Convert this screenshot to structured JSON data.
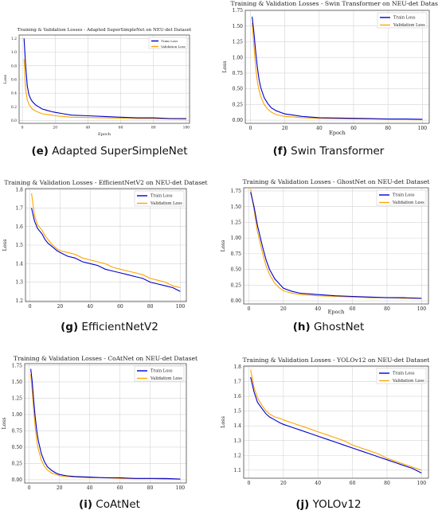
{
  "chart_data": [
    {
      "type": "line",
      "title": "Training & Validation Losses - Adapted SuperSimpleNet on NEU-det Dataset",
      "xlabel": "Epoch",
      "ylabel": "Loss",
      "xlim": [
        -2,
        102
      ],
      "ylim": [
        -0.04,
        1.25
      ],
      "xticks": [
        "0",
        "20",
        "40",
        "60",
        "80",
        "100"
      ],
      "yticks": [
        "0.0",
        "0.2",
        "0.4",
        "0.6",
        "0.8",
        "1.0",
        "1.2"
      ],
      "grid": true,
      "legend": "top-right",
      "series": [
        {
          "name": "Train Loss",
          "color": "#0000cc",
          "x": [
            1,
            2,
            3,
            4,
            5,
            6,
            8,
            10,
            12,
            15,
            18,
            20,
            25,
            30,
            40,
            50,
            60,
            70,
            80,
            90,
            100
          ],
          "y": [
            1.2,
            0.8,
            0.5,
            0.38,
            0.32,
            0.28,
            0.23,
            0.2,
            0.17,
            0.15,
            0.13,
            0.12,
            0.1,
            0.08,
            0.07,
            0.06,
            0.05,
            0.04,
            0.04,
            0.03,
            0.03
          ]
        },
        {
          "name": "Validation Loss",
          "color": "#ffa500",
          "x": [
            1,
            2,
            3,
            4,
            5,
            6,
            8,
            10,
            12,
            15,
            18,
            20,
            25,
            30,
            40,
            50,
            60,
            70,
            80,
            90,
            100
          ],
          "y": [
            0.9,
            0.45,
            0.3,
            0.24,
            0.2,
            0.17,
            0.14,
            0.12,
            0.1,
            0.09,
            0.08,
            0.07,
            0.06,
            0.05,
            0.045,
            0.04,
            0.035,
            0.03,
            0.028,
            0.025,
            0.02
          ]
        }
      ],
      "caption_letter": "(e)",
      "caption_text": " Adapted SuperSimpleNet"
    },
    {
      "type": "line",
      "title": "Training & Validation Losses - Swin Transformer on NEU-det Dataset",
      "xlabel": "Epoch",
      "ylabel": "Loss",
      "xlim": [
        -3,
        104
      ],
      "ylim": [
        -0.05,
        1.75
      ],
      "xticks": [
        "0",
        "20",
        "40",
        "60",
        "80",
        "100"
      ],
      "yticks": [
        "0.00",
        "0.25",
        "0.50",
        "0.75",
        "1.00",
        "1.25",
        "1.50",
        "1.75"
      ],
      "grid": true,
      "legend": "top-right",
      "series": [
        {
          "name": "Train Loss",
          "color": "#0000cc",
          "x": [
            1,
            2,
            3,
            4,
            5,
            6,
            8,
            10,
            12,
            15,
            18,
            20,
            25,
            30,
            40,
            50,
            60,
            70,
            80,
            90,
            100
          ],
          "y": [
            1.65,
            1.4,
            1.1,
            0.85,
            0.65,
            0.52,
            0.36,
            0.27,
            0.2,
            0.15,
            0.12,
            0.1,
            0.08,
            0.06,
            0.04,
            0.035,
            0.03,
            0.025,
            0.02,
            0.02,
            0.015
          ]
        },
        {
          "name": "Validation Loss",
          "color": "#ffa500",
          "x": [
            1,
            2,
            3,
            4,
            5,
            6,
            8,
            10,
            12,
            15,
            18,
            20,
            25,
            30,
            40,
            50,
            60,
            70,
            80,
            90,
            100
          ],
          "y": [
            1.55,
            1.2,
            0.85,
            0.62,
            0.48,
            0.38,
            0.25,
            0.18,
            0.13,
            0.09,
            0.07,
            0.06,
            0.05,
            0.04,
            0.03,
            0.025,
            0.02,
            0.02,
            0.015,
            0.012,
            0.01
          ]
        }
      ],
      "caption_letter": "(f)",
      "caption_text": " Swin Transformer"
    },
    {
      "type": "line",
      "title": "Training & Validation Losses - EfficientNetV2 on NEU-det Dataset",
      "xlabel": "",
      "ylabel": "Loss",
      "xlim": [
        -3,
        104
      ],
      "ylim": [
        1.195,
        1.805
      ],
      "xticks": [
        "0",
        "20",
        "40",
        "60",
        "80",
        "100"
      ],
      "yticks": [
        "1.2",
        "1.3",
        "1.4",
        "1.5",
        "1.6",
        "1.7",
        "1.8"
      ],
      "grid": true,
      "legend": "top-right",
      "series": [
        {
          "name": "Train Loss",
          "color": "#0000cc",
          "x": [
            1,
            3,
            5,
            8,
            10,
            12,
            15,
            18,
            20,
            25,
            30,
            35,
            40,
            45,
            50,
            55,
            60,
            65,
            70,
            75,
            80,
            85,
            90,
            95,
            100
          ],
          "y": [
            1.7,
            1.63,
            1.59,
            1.56,
            1.53,
            1.51,
            1.49,
            1.47,
            1.46,
            1.44,
            1.43,
            1.41,
            1.4,
            1.39,
            1.37,
            1.36,
            1.35,
            1.34,
            1.33,
            1.32,
            1.3,
            1.29,
            1.28,
            1.27,
            1.25
          ]
        },
        {
          "name": "Validation Loss",
          "color": "#ffa500",
          "x": [
            1,
            3,
            5,
            8,
            10,
            12,
            15,
            18,
            20,
            25,
            30,
            35,
            40,
            45,
            50,
            55,
            60,
            65,
            70,
            75,
            80,
            85,
            90,
            95,
            100
          ],
          "y": [
            1.78,
            1.66,
            1.61,
            1.58,
            1.55,
            1.53,
            1.5,
            1.48,
            1.47,
            1.46,
            1.45,
            1.43,
            1.42,
            1.41,
            1.4,
            1.38,
            1.37,
            1.36,
            1.35,
            1.34,
            1.32,
            1.31,
            1.3,
            1.28,
            1.27
          ]
        }
      ],
      "caption_letter": "(g)",
      "caption_text": " EfficientNetV2"
    },
    {
      "type": "line",
      "title": "Training & Validation Losses - GhostNet on NEU-det Dataset",
      "xlabel": "Epoch",
      "ylabel": "Loss",
      "xlim": [
        -3,
        104
      ],
      "ylim": [
        -0.05,
        1.8
      ],
      "xticks": [
        "0",
        "20",
        "40",
        "60",
        "80",
        "100"
      ],
      "yticks": [
        "0.00",
        "0.25",
        "0.50",
        "0.75",
        "1.00",
        "1.25",
        "1.50",
        "1.75"
      ],
      "grid": true,
      "legend": "top-right",
      "series": [
        {
          "name": "Train Loss",
          "color": "#0000cc",
          "x": [
            1,
            3,
            5,
            8,
            10,
            12,
            15,
            18,
            20,
            25,
            30,
            40,
            50,
            60,
            70,
            80,
            90,
            100
          ],
          "y": [
            1.73,
            1.5,
            1.2,
            0.85,
            0.65,
            0.5,
            0.35,
            0.26,
            0.2,
            0.15,
            0.12,
            0.1,
            0.08,
            0.07,
            0.06,
            0.05,
            0.05,
            0.04
          ]
        },
        {
          "name": "Validation Loss",
          "color": "#ffa500",
          "x": [
            1,
            3,
            5,
            8,
            10,
            12,
            15,
            18,
            20,
            25,
            30,
            40,
            50,
            60,
            70,
            80,
            90,
            100
          ],
          "y": [
            1.78,
            1.45,
            1.1,
            0.75,
            0.55,
            0.42,
            0.28,
            0.2,
            0.16,
            0.12,
            0.1,
            0.08,
            0.07,
            0.06,
            0.05,
            0.05,
            0.04,
            0.04
          ]
        }
      ],
      "caption_letter": "(h)",
      "caption_text": " GhostNet"
    },
    {
      "type": "line",
      "title": "Training & Validation Losses - CoAtNet on NEU-det Dataset",
      "xlabel": "",
      "ylabel": "Loss",
      "xlim": [
        -3,
        104
      ],
      "ylim": [
        -0.05,
        1.78
      ],
      "xticks": [
        "0",
        "20",
        "40",
        "60",
        "80",
        "100"
      ],
      "yticks": [
        "0.00",
        "0.25",
        "0.50",
        "0.75",
        "1.00",
        "1.25",
        "1.50",
        "1.75"
      ],
      "grid": true,
      "legend": "top-right",
      "series": [
        {
          "name": "Train Loss",
          "color": "#0000cc",
          "x": [
            1,
            2,
            3,
            4,
            5,
            6,
            8,
            10,
            12,
            15,
            18,
            20,
            25,
            30,
            40,
            50,
            60,
            70,
            80,
            90,
            100
          ],
          "y": [
            1.7,
            1.5,
            1.2,
            0.95,
            0.75,
            0.6,
            0.4,
            0.28,
            0.2,
            0.14,
            0.1,
            0.08,
            0.06,
            0.05,
            0.04,
            0.03,
            0.03,
            0.02,
            0.02,
            0.02,
            0.01
          ]
        },
        {
          "name": "Validation Loss",
          "color": "#ffa500",
          "x": [
            1,
            2,
            3,
            4,
            5,
            6,
            8,
            10,
            12,
            15,
            18,
            20,
            25,
            30,
            40,
            50,
            60,
            70,
            80,
            90,
            100
          ],
          "y": [
            1.62,
            1.35,
            1.05,
            0.8,
            0.6,
            0.47,
            0.3,
            0.21,
            0.15,
            0.1,
            0.08,
            0.06,
            0.05,
            0.04,
            0.03,
            0.03,
            0.02,
            0.02,
            0.02,
            0.01,
            0.01
          ]
        }
      ],
      "caption_letter": "(i)",
      "caption_text": " CoAtNet"
    },
    {
      "type": "line",
      "title": "Training & Validation Losses - YOLOv12 on NEU-det Dataset",
      "xlabel": "",
      "ylabel": "Loss",
      "xlim": [
        -3,
        104
      ],
      "ylim": [
        1.045,
        1.805
      ],
      "xticks": [
        "0",
        "20",
        "40",
        "60",
        "80",
        "100"
      ],
      "yticks": [
        "1.1",
        "1.2",
        "1.3",
        "1.4",
        "1.5",
        "1.6",
        "1.7",
        "1.8"
      ],
      "grid": true,
      "legend": "top-right",
      "series": [
        {
          "name": "Train Loss",
          "color": "#0000cc",
          "x": [
            1,
            3,
            5,
            8,
            10,
            12,
            15,
            18,
            20,
            25,
            30,
            35,
            40,
            45,
            50,
            55,
            60,
            65,
            70,
            75,
            80,
            85,
            90,
            95,
            100
          ],
          "y": [
            1.73,
            1.63,
            1.56,
            1.51,
            1.48,
            1.46,
            1.44,
            1.42,
            1.41,
            1.39,
            1.37,
            1.35,
            1.33,
            1.31,
            1.29,
            1.27,
            1.25,
            1.23,
            1.21,
            1.19,
            1.17,
            1.15,
            1.13,
            1.11,
            1.08
          ]
        },
        {
          "name": "Validation Loss",
          "color": "#ffa500",
          "x": [
            1,
            3,
            5,
            8,
            10,
            12,
            15,
            18,
            20,
            25,
            30,
            35,
            40,
            45,
            50,
            55,
            60,
            65,
            70,
            75,
            80,
            85,
            90,
            95,
            100
          ],
          "y": [
            1.78,
            1.66,
            1.59,
            1.53,
            1.5,
            1.48,
            1.46,
            1.45,
            1.44,
            1.42,
            1.4,
            1.38,
            1.36,
            1.34,
            1.32,
            1.3,
            1.27,
            1.25,
            1.23,
            1.21,
            1.18,
            1.16,
            1.14,
            1.12,
            1.1
          ]
        }
      ],
      "caption_letter": "(j)",
      "caption_text": " YOLOv12"
    }
  ]
}
